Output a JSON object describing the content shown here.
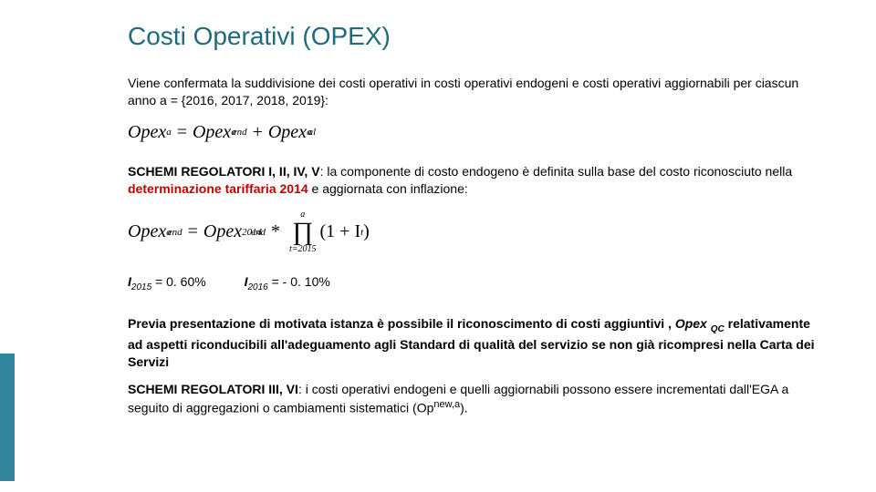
{
  "title": "Costi Operativi (OPEX)",
  "intro": "Viene confermata la suddivisione dei costi operativi in costi operativi endogeni e costi operativi aggiornabili per ciascun anno a = {2016, 2017, 2018, 2019}:",
  "formula1": {
    "lhs_base": "Opex",
    "lhs_sup": "a",
    "rhs1_base": "Opex",
    "rhs1_sub": "end",
    "rhs1_sup": "a",
    "rhs2_base": "Opex",
    "rhs2_sub": "al",
    "rhs2_sup": "a"
  },
  "schemi1_label": "SCHEMI REGOLATORI I, II, IV, V",
  "schemi1_text": ": la componente di costo endogeno è definita sulla base del costo riconosciuto nella ",
  "schemi1_highlight": "determinazione tariffaria 2014",
  "schemi1_tail": " e aggiornata con inflazione:",
  "formula2": {
    "lhs_base": "Opex",
    "lhs_sub": "end",
    "lhs_sup": "a",
    "rhs_base": "Opex",
    "rhs_sub": "end",
    "rhs_sup": "2014",
    "prod_upper": "a",
    "prod_lower": "t=2015",
    "factor": "(1 + I",
    "factor_sup": "t",
    "factor_close": ")"
  },
  "i2015_label": "I",
  "i2015_sub": "2015",
  "i2015_val": " =   0. 60%",
  "i2016_label": "I",
  "i2016_sub": "2016",
  "i2016_val": " = - 0. 10%",
  "note_pre": "Previa presentazione di motivata istanza è possibile il riconoscimento di costi aggiuntivi , ",
  "note_opex": "Opex ",
  "note_opex_sub": "QC",
  "note_post": " relativamente ad aspetti riconducibili all'adeguamento agli Standard di qualità del servizio se non già ricompresi nella Carta dei Servizi",
  "schemi2_label": "SCHEMI REGOLATORI III, VI",
  "schemi2_text": ": i costi operativi endogeni e quelli aggiornabili possono essere incrementati dall'EGA a seguito di  aggregazioni o cambiamenti sistematici (Op",
  "schemi2_sup": "new,a",
  "schemi2_tail": ").",
  "colors": {
    "title": "#1f6a7d",
    "highlight": "#c00000",
    "sidebar": "#31859c",
    "background": "#ffffff",
    "text": "#000000"
  }
}
